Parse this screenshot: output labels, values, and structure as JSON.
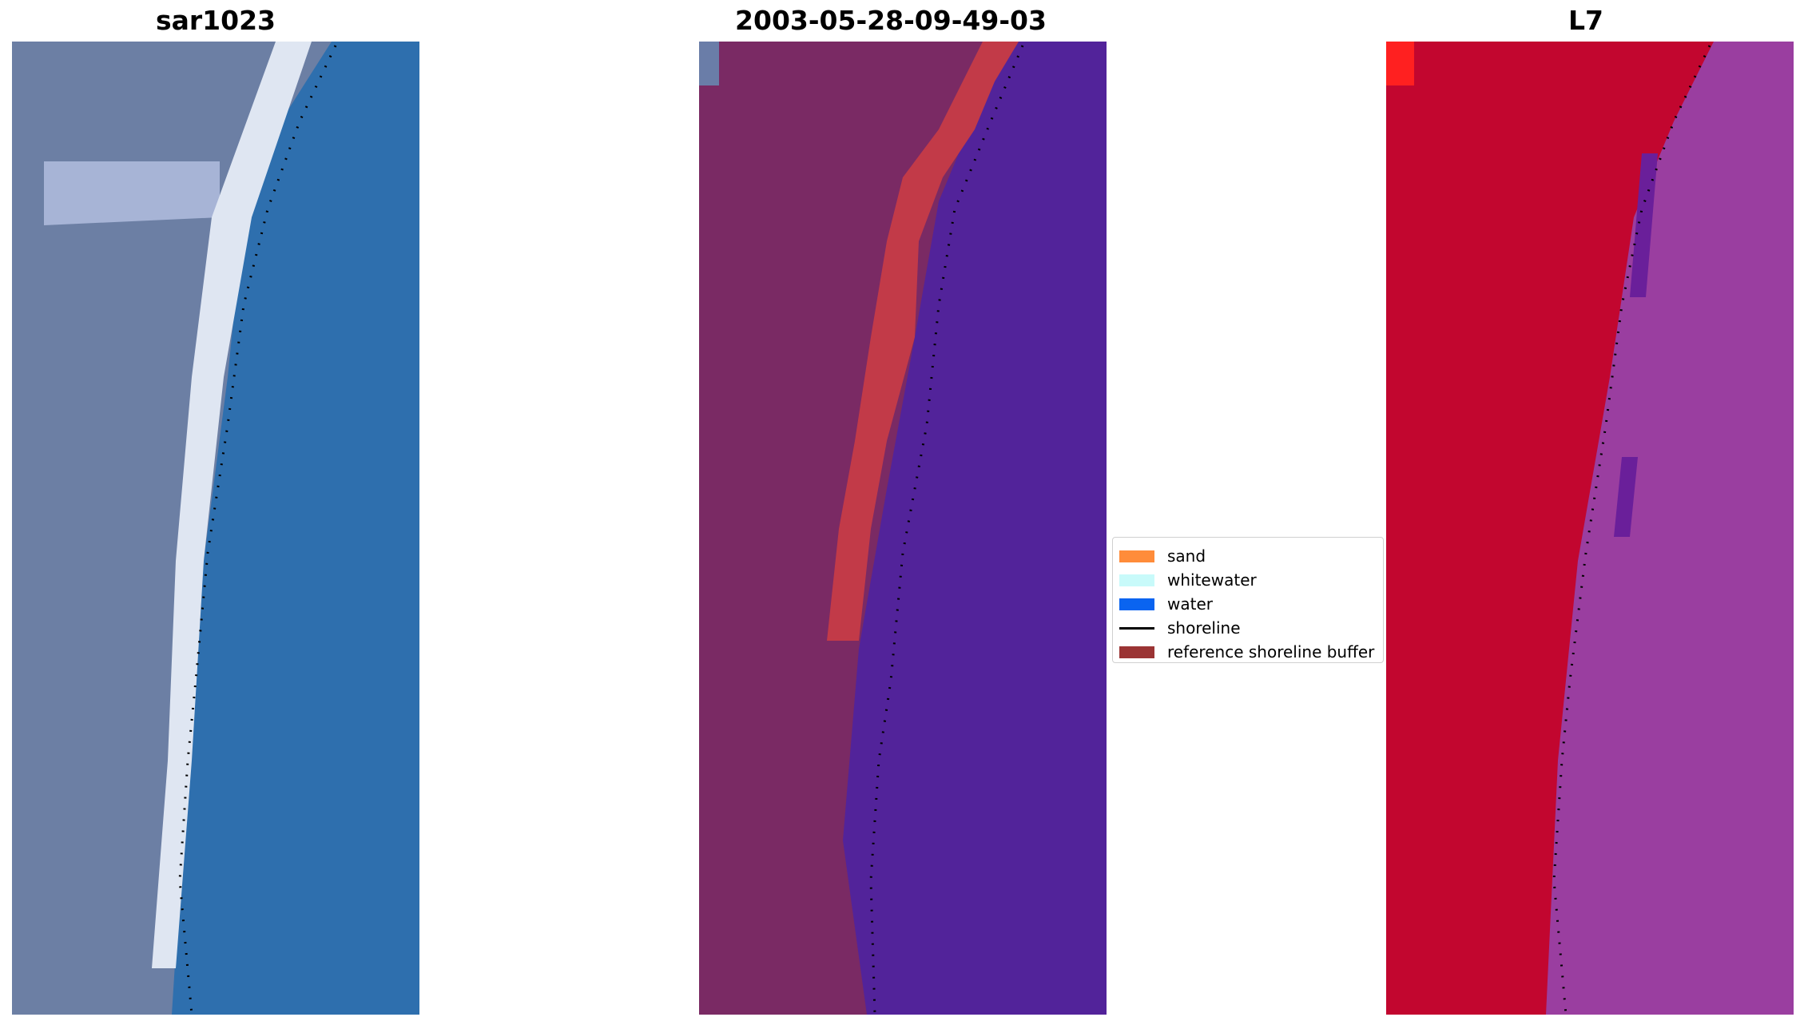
{
  "panels": {
    "left": {
      "title": "sar1023"
    },
    "middle": {
      "title": "2003-05-28-09-49-03"
    },
    "right": {
      "title": "L7"
    }
  },
  "legend": {
    "items": [
      {
        "label": "sand",
        "kind": "patch",
        "color": "#ff8c3a"
      },
      {
        "label": "whitewater",
        "kind": "patch",
        "color": "#c8fafa"
      },
      {
        "label": "water",
        "kind": "patch",
        "color": "#0a64f0"
      },
      {
        "label": "shoreline",
        "kind": "line",
        "color": "#000000"
      },
      {
        "label": "reference shoreline buffer",
        "kind": "patch",
        "color": "#9b3434"
      }
    ]
  },
  "colors": {
    "left_land": "#6c7fa4",
    "left_water": "#2e7cb8",
    "left_beach": "#dfe6f2",
    "middle_land": "#7a2a64",
    "middle_water": "#52239a",
    "middle_buffer": "#c23a48",
    "right_land": "#c2062f",
    "right_water": "#9a3ea0",
    "shoreline": "#000000"
  }
}
